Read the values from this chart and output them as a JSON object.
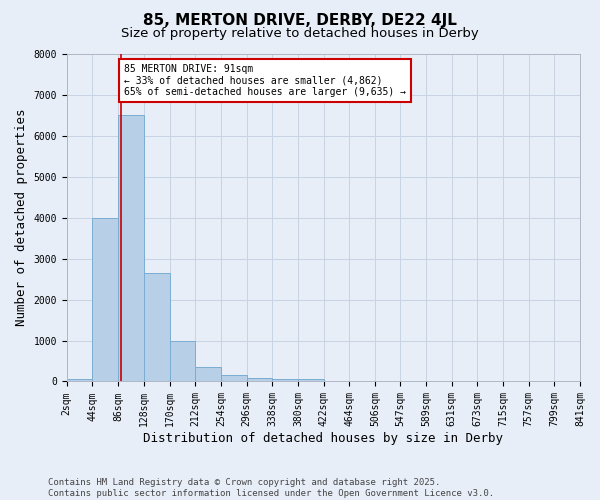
{
  "title": "85, MERTON DRIVE, DERBY, DE22 4JL",
  "subtitle": "Size of property relative to detached houses in Derby",
  "xlabel": "Distribution of detached houses by size in Derby",
  "ylabel": "Number of detached properties",
  "bar_edges": [
    2,
    44,
    86,
    128,
    170,
    212,
    254,
    296,
    338,
    380,
    422,
    464,
    506,
    547,
    589,
    631,
    673,
    715,
    757,
    799,
    841
  ],
  "bar_heights": [
    50,
    4000,
    6500,
    2650,
    1000,
    350,
    150,
    75,
    50,
    50,
    0,
    0,
    0,
    0,
    0,
    0,
    0,
    0,
    0,
    0
  ],
  "bar_color": "#b8cfe8",
  "bar_edgecolor": "#7aadd4",
  "grid_color": "#c8d4e4",
  "bg_color": "#e8eef8",
  "vline_x": 91,
  "vline_color": "#cc0000",
  "annotation_text": "85 MERTON DRIVE: 91sqm\n← 33% of detached houses are smaller (4,862)\n65% of semi-detached houses are larger (9,635) →",
  "annotation_box_edgecolor": "#cc0000",
  "annotation_box_facecolor": "#ffffff",
  "ylim": [
    0,
    8000
  ],
  "yticks": [
    0,
    1000,
    2000,
    3000,
    4000,
    5000,
    6000,
    7000,
    8000
  ],
  "xtick_labels": [
    "2sqm",
    "44sqm",
    "86sqm",
    "128sqm",
    "170sqm",
    "212sqm",
    "254sqm",
    "296sqm",
    "338sqm",
    "380sqm",
    "422sqm",
    "464sqm",
    "506sqm",
    "547sqm",
    "589sqm",
    "631sqm",
    "673sqm",
    "715sqm",
    "757sqm",
    "799sqm",
    "841sqm"
  ],
  "footer_text": "Contains HM Land Registry data © Crown copyright and database right 2025.\nContains public sector information licensed under the Open Government Licence v3.0.",
  "title_fontsize": 11,
  "subtitle_fontsize": 9.5,
  "axis_label_fontsize": 9,
  "tick_fontsize": 7,
  "footer_fontsize": 6.5,
  "annotation_fontsize": 7
}
